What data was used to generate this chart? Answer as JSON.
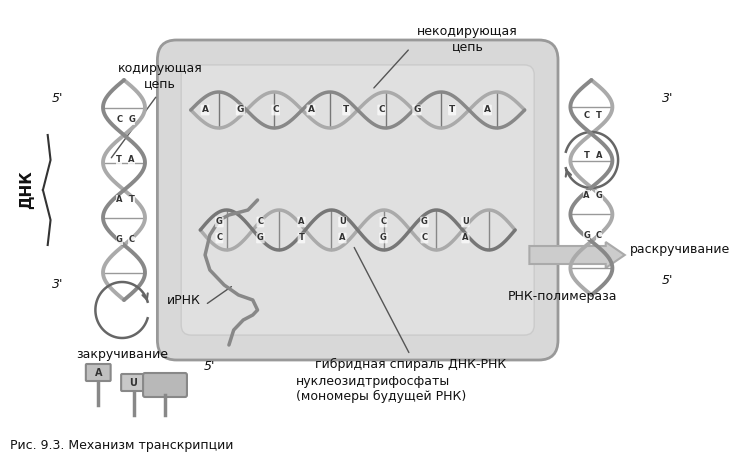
{
  "title": "",
  "caption": "Рис. 9.3. Механизм транскрипции",
  "background_color": "#ffffff",
  "fig_width": 7.45,
  "fig_height": 4.72,
  "labels": {
    "kodiruyushchaya": "кодирующая\nцепь",
    "nekodiruyushchaya": "некодирующая\nцепь",
    "dnk": "ДНК",
    "zakruchivanie": "закручивание",
    "irna": "иРНК",
    "five_prime_left": "5'",
    "three_prime_left": "3'",
    "three_prime_right": "3'",
    "five_prime_right": "5'",
    "five_prime_bottom": "5'",
    "raskruchivanie": "раскручивание",
    "rna_polymerase": "РНК-полимераза",
    "hybrid": "гибридная спираль ДНК-РНК",
    "nucleotides": "нуклеозидтрифосфаты\n(мономеры будущей РНК)"
  },
  "colors": {
    "main_gray": "#aaaaaa",
    "dark_gray": "#666666",
    "light_gray": "#cccccc",
    "text_color": "#000000",
    "helix_color": "#999999",
    "box_fill": "#d0d0d0",
    "box_edge": "#888888",
    "nucleotide_fill": "#bbbbbb",
    "arrow_gray": "#aaaaaa"
  }
}
